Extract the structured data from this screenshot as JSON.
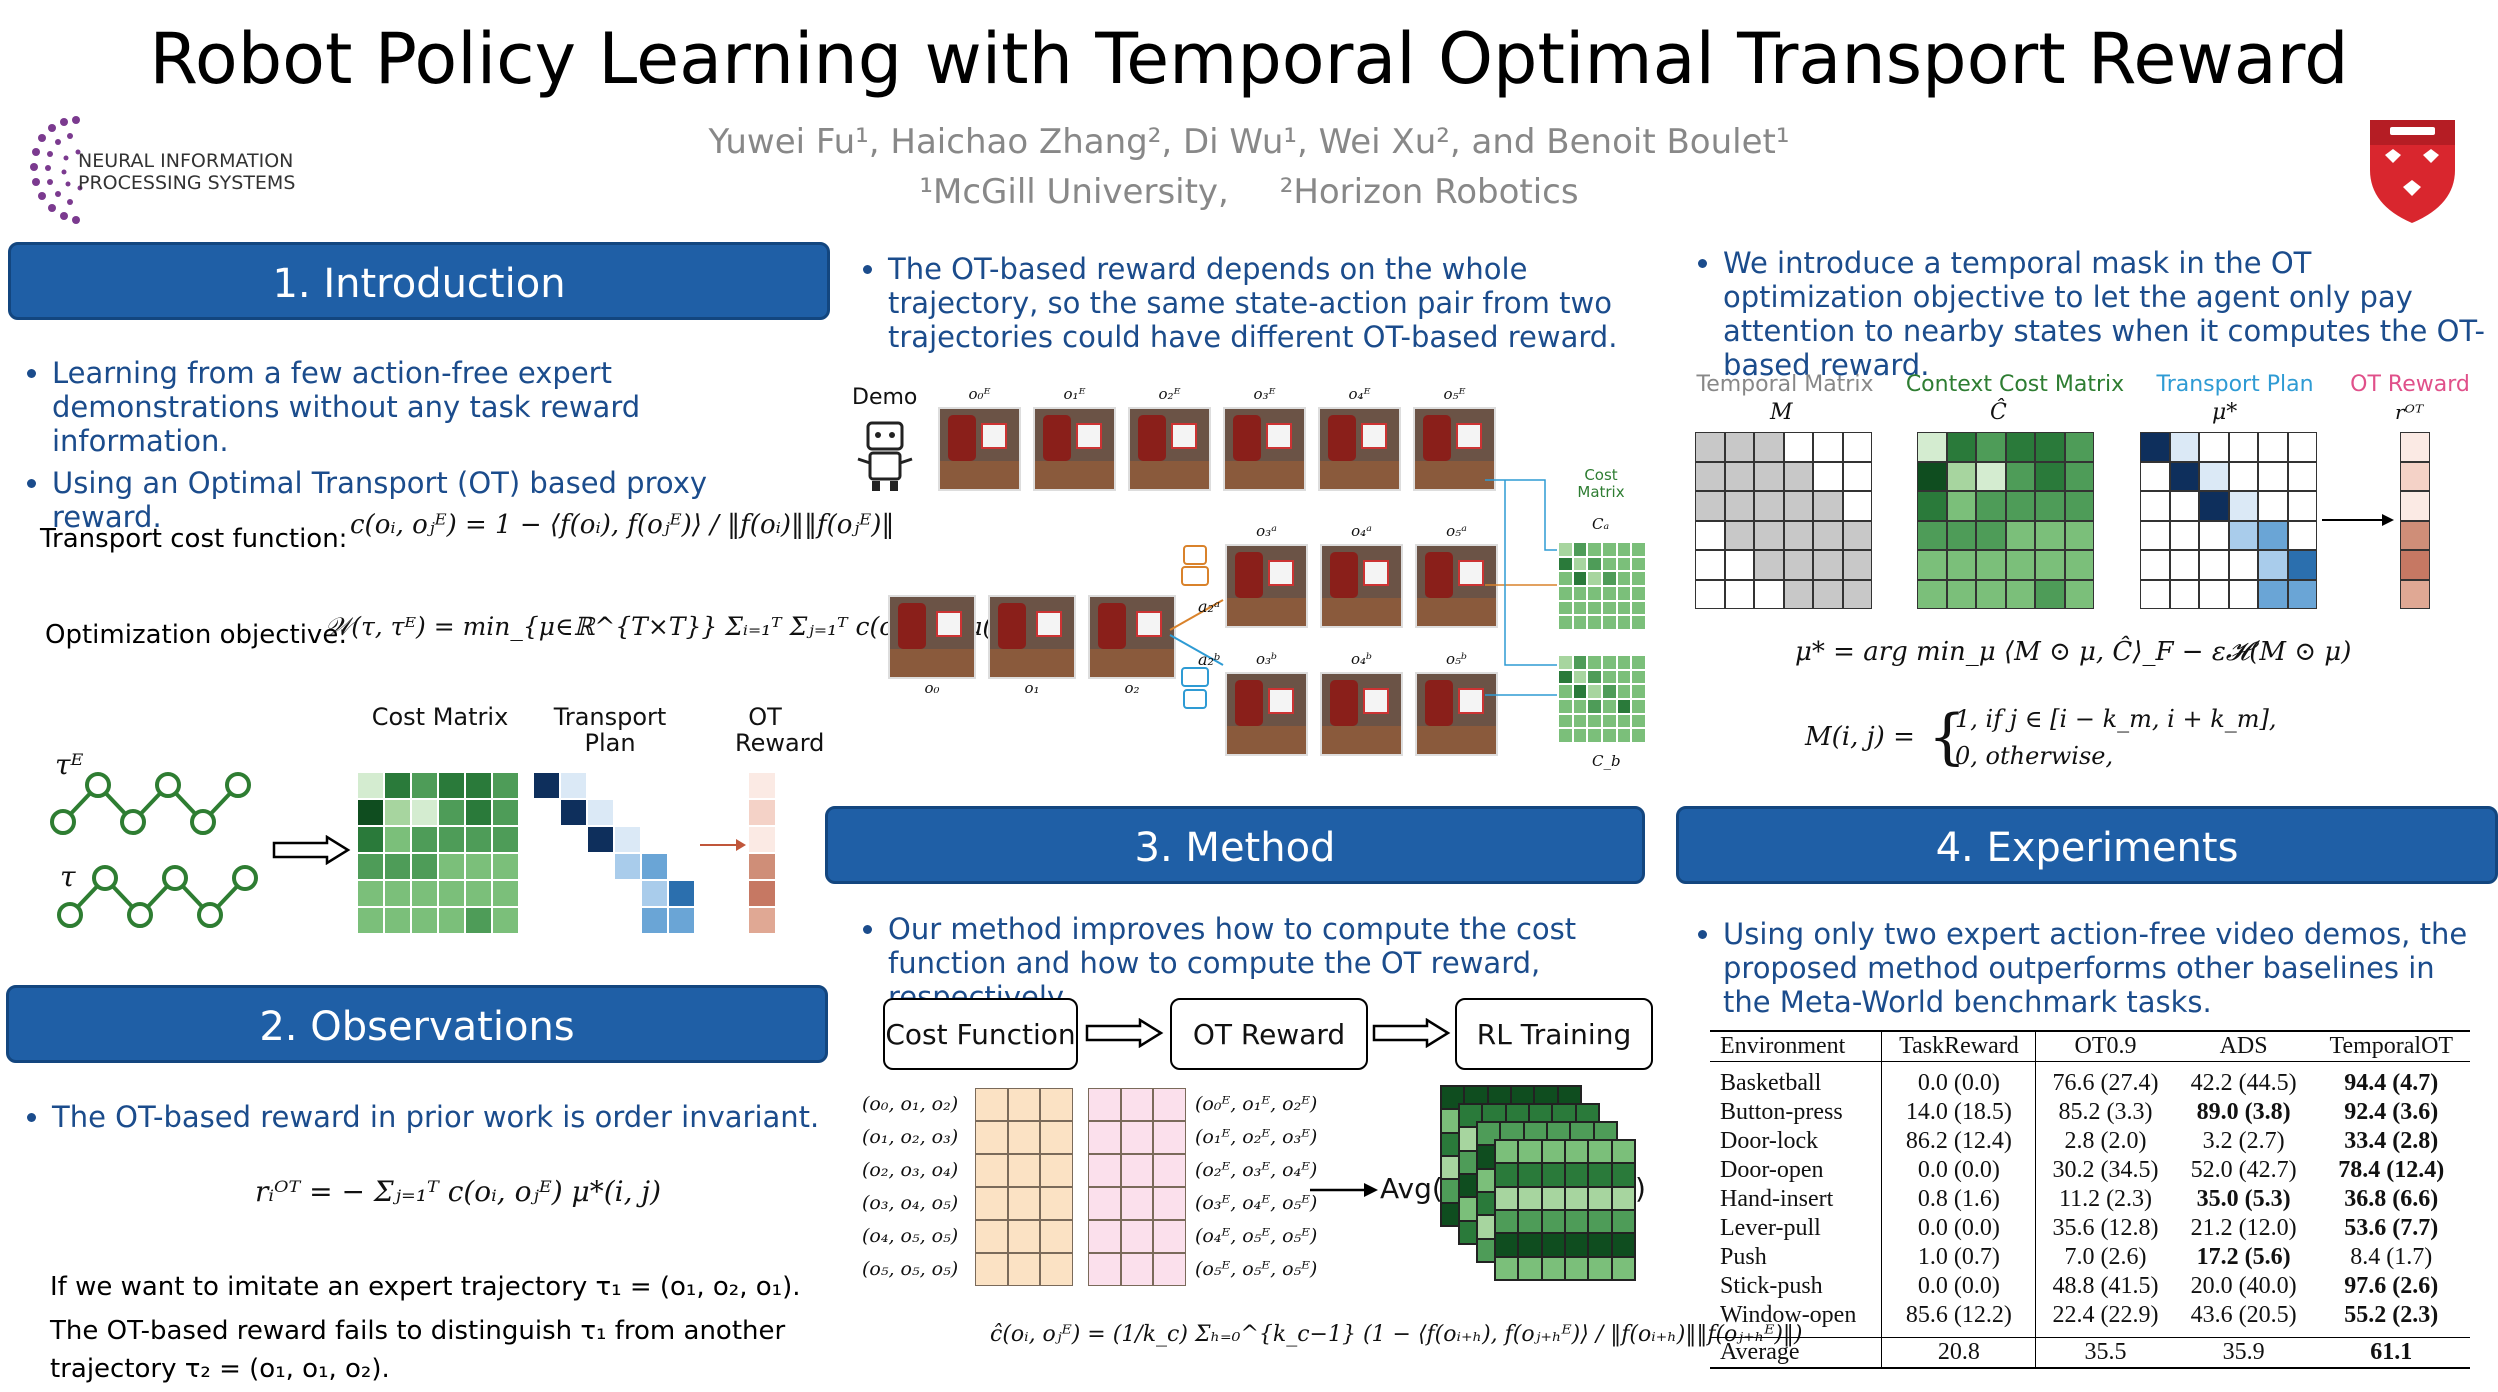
{
  "title": "Robot Policy Learning with Temporal Optimal Transport Reward",
  "authors": "Yuwei Fu¹, Haichao Zhang², Di Wu¹, Wei Xu², and Benoit Boulet¹",
  "affiliations": [
    "¹McGill University,",
    "²Horizon Robotics"
  ],
  "logo_text": [
    "NEURAL INFORMATION",
    "PROCESSING SYSTEMS"
  ],
  "colors": {
    "header_blue": "#1f5fa6",
    "bullet_blue": "#1b4c8c",
    "green": "#2e7d32",
    "teal": "#2e9bd4",
    "pink": "#e0508a"
  },
  "intro": {
    "header": "1. Introduction",
    "bullets": [
      "Learning from a few action-free expert demonstrations without any task reward information.",
      "Using an Optimal Transport (OT) based proxy reward."
    ],
    "cost_label": "Transport cost function:",
    "cost_formula": "c(oᵢ, oⱼᴱ) = 1 − ⟨f(oᵢ), f(oⱼᴱ)⟩ / ‖f(oᵢ)‖‖f(oⱼᴱ)‖",
    "opt_label": "Optimization objective:",
    "opt_formula": "𝒲(τ, τᴱ) = min_{μ∈ℝ^{T×T}} Σᵢ₌₁ᵀ Σⱼ₌₁ᵀ c(oᵢ, oⱼᴱ) μ(i, j),",
    "fig_labels": {
      "cost": "Cost Matrix",
      "plan": "Transport Plan",
      "reward": "OT Reward",
      "tauE": "τᴱ",
      "tau": "τ"
    }
  },
  "obs": {
    "header": "2. Observations",
    "bullets": [
      "The OT-based reward in prior work is order invariant."
    ],
    "formula": "rᵢᴼᵀ = − Σⱼ₌₁ᵀ c(oᵢ, oⱼᴱ) μ*(i, j)",
    "text1": "If we want to imitate an expert trajectory τ₁ = (o₁, o₂, o₁).",
    "text2": "The OT-based reward fails to distinguish τ₁ from another",
    "text3": "trajectory τ₂ = (o₁, o₁, o₂)."
  },
  "col2_top": {
    "bullets": [
      "The OT-based reward depends on the whole trajectory, so the same state-action pair from two trajectories could have different OT-based reward."
    ],
    "demo_label": "Demo",
    "demo_obs": [
      "o₀ᴱ",
      "o₁ᴱ",
      "o₂ᴱ",
      "o₃ᴱ",
      "o₄ᴱ",
      "o₅ᴱ"
    ],
    "traj_a": [
      "o₃ᵃ",
      "o₄ᵃ",
      "o₅ᵃ"
    ],
    "traj_b": [
      "o₃ᵇ",
      "o₄ᵇ",
      "o₅ᵇ"
    ],
    "start_obs": [
      "o₀",
      "o₁",
      "o₂"
    ],
    "act_a": "a₂ᵃ",
    "act_b": "a₂ᵇ",
    "cost_matrix": "Cost Matrix",
    "ca": "Cₐ",
    "cb": "C_b"
  },
  "method": {
    "header": "3. Method",
    "bullets": [
      "Our method improves how to compute the cost function and how to compute the OT reward, respectively."
    ],
    "boxes": [
      "Cost Function",
      "OT Reward",
      "RL Training"
    ],
    "left_tuples": [
      "(o₀, o₁, o₂)",
      "(o₁, o₂, o₃)",
      "(o₂, o₃, o₄)",
      "(o₃, o₄, o₅)",
      "(o₄, o₅, o₅)",
      "(o₅, o₅, o₅)"
    ],
    "right_tuples": [
      "(o₀ᴱ, o₁ᴱ, o₂ᴱ)",
      "(o₁ᴱ, o₂ᴱ, o₃ᴱ)",
      "(o₂ᴱ, o₃ᴱ, o₄ᴱ)",
      "(o₃ᴱ, o₄ᴱ, o₅ᴱ)",
      "(o₄ᴱ, o₅ᴱ, o₅ᴱ)",
      "(o₅ᴱ, o₅ᴱ, o₅ᴱ)"
    ],
    "avg": "Avg(",
    "avg_close": ")",
    "formula": "ĉ(oᵢ, oⱼᴱ) = (1/k_c) Σₕ₌₀^{k_c−1} (1 − ⟨f(oᵢ₊ₕ), f(oⱼ₊ₕᴱ)⟩ / ‖f(oᵢ₊ₕ)‖‖f(oⱼ₊ₕᴱ)‖)"
  },
  "col3_top": {
    "bullets": [
      "We introduce a temporal mask in the OT optimization objective to let the agent only pay attention to nearby states when it computes the OT-based reward."
    ],
    "labels": [
      "Temporal Matrix",
      "Context Cost Matrix",
      "Transport Plan",
      "OT Reward"
    ],
    "symbols": [
      "M",
      "Ĉ",
      "μ*",
      "rᴼᵀ"
    ],
    "formula1": "μ* = arg min_μ ⟨M ⊙ μ, Ĉ⟩_F − ε𝓗(M ⊙ μ)",
    "formula2_lhs": "M(i, j) =",
    "formula2_case1": "1,   if j ∈ [i − k_m, i + k_m],",
    "formula2_case2": "0,   otherwise,"
  },
  "exp": {
    "header": "4. Experiments",
    "bullets": [
      "Using only two expert action-free video demos, the proposed method outperforms other baselines in the Meta-World benchmark tasks."
    ],
    "table": {
      "headers": [
        "Environment",
        "TaskReward",
        "OT0.9",
        "ADS",
        "TemporalOT"
      ],
      "rows": [
        [
          "Basketball",
          "0.0 (0.0)",
          "76.6 (27.4)",
          "42.2 (44.5)",
          "94.4 (4.7)"
        ],
        [
          "Button-press",
          "14.0 (18.5)",
          "85.2 (3.3)",
          "89.0 (3.8)",
          "92.4 (3.6)"
        ],
        [
          "Door-lock",
          "86.2 (12.4)",
          "2.8 (2.0)",
          "3.2 (2.7)",
          "33.4 (2.8)"
        ],
        [
          "Door-open",
          "0.0 (0.0)",
          "30.2 (34.5)",
          "52.0 (42.7)",
          "78.4 (12.4)"
        ],
        [
          "Hand-insert",
          "0.8 (1.6)",
          "11.2 (2.3)",
          "35.0 (5.3)",
          "36.8 (6.6)"
        ],
        [
          "Lever-pull",
          "0.0 (0.0)",
          "35.6 (12.8)",
          "21.2 (12.0)",
          "53.6 (7.7)"
        ],
        [
          "Push",
          "1.0 (0.7)",
          "7.0 (2.6)",
          "17.2 (5.6)",
          "8.4 (1.7)"
        ],
        [
          "Stick-push",
          "0.0 (0.0)",
          "48.8 (41.5)",
          "20.0 (40.0)",
          "97.6 (2.6)"
        ],
        [
          "Window-open",
          "85.6 (12.2)",
          "22.4 (22.9)",
          "43.6 (20.5)",
          "55.2 (2.3)"
        ]
      ],
      "bold": [
        [
          4
        ],
        [
          3,
          4
        ],
        [
          4
        ],
        [
          4
        ],
        [
          3,
          4
        ],
        [
          4
        ],
        [
          3
        ],
        [
          4
        ],
        [
          4
        ]
      ],
      "average": [
        "Average",
        "20.8",
        "35.5",
        "35.9",
        "61.1"
      ]
    }
  }
}
